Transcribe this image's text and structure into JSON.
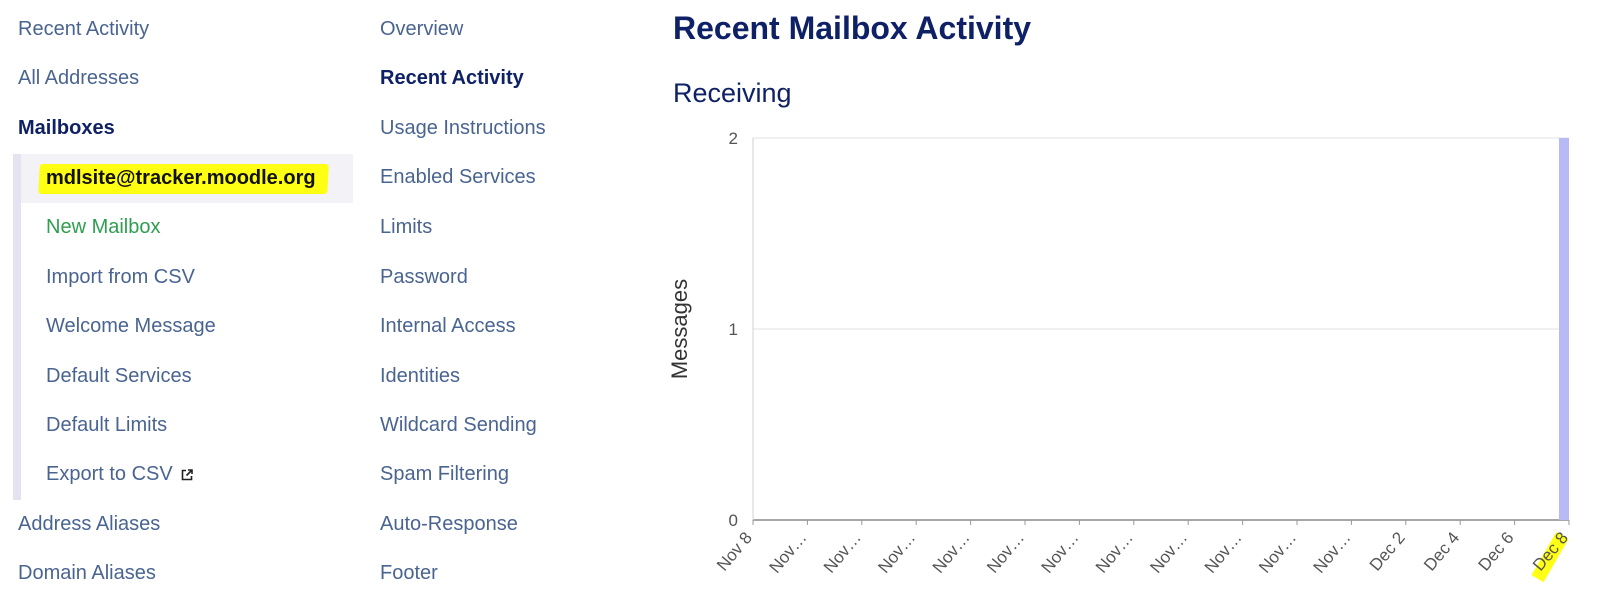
{
  "colors": {
    "link": "#4a6491",
    "active_link": "#0f2166",
    "new_item": "#2e9e4f",
    "highlight": "#ffff14",
    "bar": "#b8baf5"
  },
  "sidebar": {
    "items": [
      {
        "label": "Recent Activity"
      },
      {
        "label": "All Addresses"
      },
      {
        "label": "Mailboxes"
      },
      {
        "label": "Address Aliases"
      },
      {
        "label": "Domain Aliases"
      }
    ],
    "mailbox_items": [
      {
        "label": "mdlsite@tracker.moodle.org"
      },
      {
        "label": "New Mailbox"
      },
      {
        "label": "Import from CSV"
      },
      {
        "label": "Welcome Message"
      },
      {
        "label": "Default Services"
      },
      {
        "label": "Default Limits"
      },
      {
        "label": "Export to CSV",
        "icon": "external-link-icon"
      }
    ]
  },
  "subnav": {
    "items": [
      {
        "label": "Overview"
      },
      {
        "label": "Recent Activity"
      },
      {
        "label": "Usage Instructions"
      },
      {
        "label": "Enabled Services"
      },
      {
        "label": "Limits"
      },
      {
        "label": "Password"
      },
      {
        "label": "Internal Access"
      },
      {
        "label": "Identities"
      },
      {
        "label": "Wildcard Sending"
      },
      {
        "label": "Spam Filtering"
      },
      {
        "label": "Auto-Response"
      },
      {
        "label": "Footer"
      }
    ]
  },
  "main": {
    "title": "Recent Mailbox Activity",
    "section": "Receiving"
  },
  "chart_data": {
    "type": "bar",
    "ylabel": "Messages",
    "ylim": [
      0,
      2
    ],
    "yticks": [
      "0",
      "1",
      "2"
    ],
    "grid": true,
    "categories": [
      "Nov 8",
      "Nov…",
      "Nov…",
      "Nov…",
      "Nov…",
      "Nov…",
      "Nov…",
      "Nov…",
      "Nov…",
      "Nov…",
      "Nov…",
      "Nov…",
      "Dec 2",
      "Dec 4",
      "Dec 6",
      "Dec 8"
    ],
    "values": [
      0,
      0,
      0,
      0,
      0,
      0,
      0,
      0,
      0,
      0,
      0,
      0,
      0,
      0,
      0,
      2
    ]
  }
}
